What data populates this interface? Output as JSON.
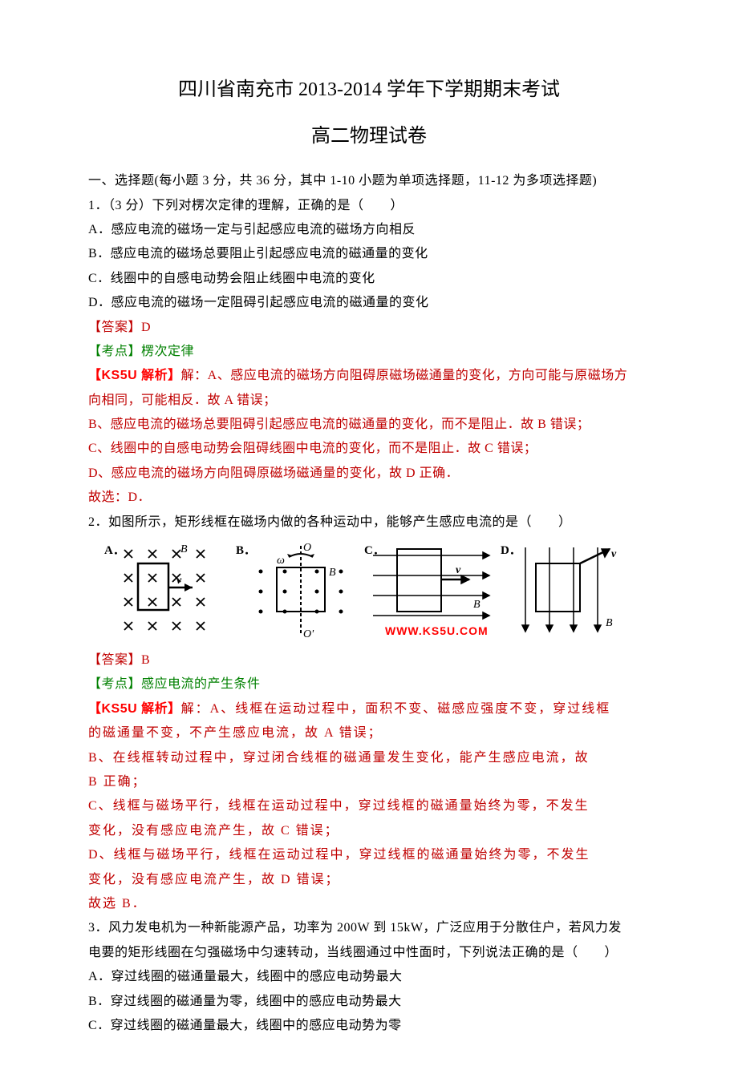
{
  "title_main": "四川省南充市 2013-2014 学年下学期期末考试",
  "title_sub": "高二物理试卷",
  "section_header": "一、选择题(每小题 3 分，共 36 分，其中 1-10 小题为单项选择题，11-12 为多项选择题)",
  "q1": {
    "stem": "1．（3 分）下列对楞次定律的理解，正确的是（　　）",
    "A": "A．感应电流的磁场一定与引起感应电流的磁场方向相反",
    "B": "B．感应电流的磁场总要阻止引起感应电流的磁通量的变化",
    "C": "C．线圈中的自感电动势会阻止线圈中电流的变化",
    "D": "D．感应电流的磁场一定阻碍引起感应电流的磁通量的变化",
    "answer_label": "【答案】D",
    "kaodian_label": "【考点】楞次定律",
    "parse_label": "【KS5U 解析】",
    "parse_lead": "解：A、感应电流的磁场方向阻碍原磁场磁通量的变化，方向可能与原磁场方",
    "parse_lead2": "向相同，可能相反．故 A 错误；",
    "parse_B": "B、感应电流的磁场总要阻碍引起感应电流的磁通量的变化，而不是阻止．故 B 错误；",
    "parse_C": "C、线圈中的自感电动势会阻碍线圈中电流的变化，而不是阻止．故 C 错误；",
    "parse_D": "D、感应电流的磁场方向阻碍原磁场磁通量的变化，故 D 正确．",
    "parse_ans": "故选：D．"
  },
  "q2": {
    "stem": "2．如图所示，矩形线框在磁场内做的各种运动中，能够产生感应电流的是（　　）",
    "labels": {
      "A": "A．",
      "B": "B．",
      "C": "C．",
      "D": "D．"
    },
    "watermark": "WWW.KS5U.COM",
    "answer_label": "【答案】B",
    "kaodian_label": "【考点】感应电流的产生条件",
    "parse_label": "【KS5U 解析】",
    "parse_A1": "解：A、线框在运动过程中，面积不变、磁感应强度不变，穿过线框",
    "parse_A2": "的磁通量不变，不产生感应电流，故 A 错误；",
    "parse_B1": "B、在线框转动过程中，穿过闭合线框的磁通量发生变化，能产生感应电流，故",
    "parse_B2": "B 正确；",
    "parse_C1": "C、线框与磁场平行，线框在运动过程中，穿过线框的磁通量始终为零，不发生",
    "parse_C2": "变化，没有感应电流产生，故 C 错误；",
    "parse_D1": "D、线框与磁场平行，线框在运动过程中，穿过线框的磁通量始终为零，不发生",
    "parse_D2": "变化，没有感应电流产生，故 D 错误；",
    "parse_ans": "故选 B．"
  },
  "q3": {
    "stem1": "3．风力发电机为一种新能源产品，功率为 200W 到 15kW，广泛应用于分散住户，若风力发",
    "stem2": "电要的矩形线圈在匀强磁场中匀速转动，当线圈通过中性面时，下列说法正确的是（　　）",
    "A": "A．穿过线圈的磁通量最大，线圈中的感应电动势最大",
    "B": "B．穿过线圈的磁通量为零，线圈中的感应电动势最大",
    "C": "C．穿过线圈的磁通量最大，线圈中的感应电动势为零"
  },
  "glyphs": {
    "v": "v",
    "B": "B",
    "O": "O",
    "Oprime": "O'",
    "omega": "ω"
  },
  "colors": {
    "text": "#000000",
    "red": "#c00000",
    "brightred": "#ff0000",
    "green": "#008000",
    "bg": "#ffffff"
  }
}
